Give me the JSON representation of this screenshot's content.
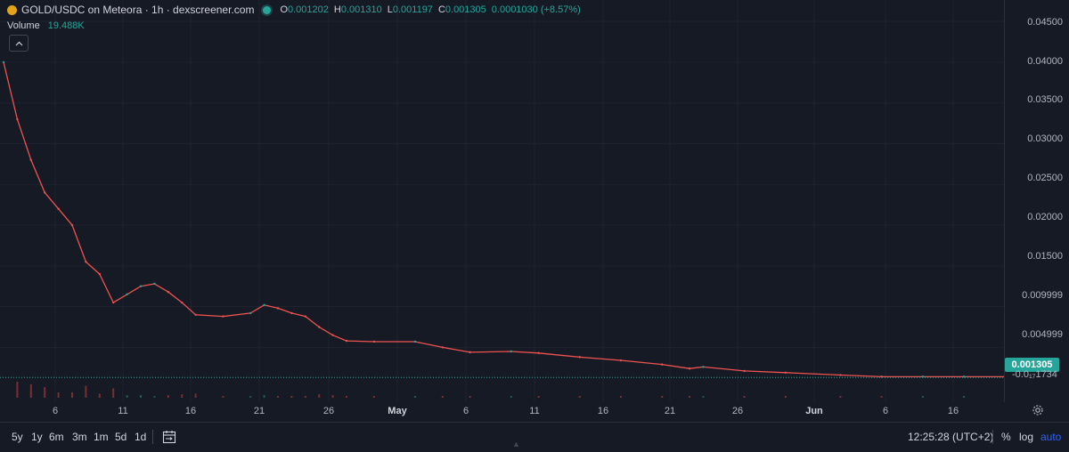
{
  "header": {
    "symbol": "GOLD/USDC on Meteora · 1h · dexscreener.com",
    "ohlc": [
      {
        "k": "O",
        "v": "0.001202"
      },
      {
        "k": "H",
        "v": "0.001310"
      },
      {
        "k": "L",
        "v": "0.001197"
      },
      {
        "k": "C",
        "v": "0.001305"
      }
    ],
    "change": "0.0001030 (+8.57%)",
    "volume_label": "Volume",
    "volume_value": "19.488K",
    "collapse_icon": "chevron-up-icon"
  },
  "price_axis": {
    "labels": [
      "0.04500",
      "0.04000",
      "0.03500",
      "0.03000",
      "0.02500",
      "0.02000",
      "0.01500",
      "0.009999",
      "0.004999"
    ],
    "last_price": "0.001305",
    "secondary_label": "-0.0₁₇1734"
  },
  "time_axis": {
    "labels": [
      "6",
      "11",
      "16",
      "21",
      "26",
      "May",
      "6",
      "11",
      "16",
      "21",
      "26",
      "Jun",
      "6",
      "16"
    ],
    "month_labels": [
      "May",
      "Jun"
    ],
    "settings_icon": "gear-icon"
  },
  "bottom_bar": {
    "ranges": [
      "5y",
      "1y",
      "6m",
      "3m",
      "1m",
      "5d",
      "1d"
    ],
    "date_range_icon": "calendar-range-icon",
    "clock": "12:25:28 (UTC+2)",
    "options": [
      "%",
      "log",
      "auto"
    ]
  },
  "colors": {
    "background": "#161a25",
    "up": "#26a69a",
    "down": "#ef5350",
    "grid": "#1f2330"
  },
  "chart_data": {
    "type": "line",
    "title": "GOLD/USDC on Meteora · 1h · dexscreener.com",
    "ylim": [
      -0.0002,
      0.0472
    ],
    "y_ticks": [
      0.045,
      0.04,
      0.035,
      0.03,
      0.025,
      0.02,
      0.015,
      0.009999,
      0.004999
    ],
    "x_ticks": [
      "6",
      "11",
      "16",
      "21",
      "26",
      "May",
      "6",
      "11",
      "16",
      "21",
      "26",
      "Jun",
      "6",
      "16"
    ],
    "series": [
      {
        "x": [
          "Apr 1",
          "Apr 2",
          "Apr 3",
          "Apr 4",
          "Apr 5",
          "Apr 6",
          "Apr 7",
          "Apr 8",
          "Apr 9",
          "Apr 10",
          "Apr 11",
          "Apr 12",
          "Apr 13",
          "Apr 14",
          "Apr 15",
          "Apr 17",
          "Apr 19",
          "Apr 20",
          "Apr 21",
          "Apr 22",
          "Apr 23",
          "Apr 24",
          "Apr 25",
          "Apr 26",
          "Apr 28",
          "May 1",
          "May 3",
          "May 5",
          "May 8",
          "May 10",
          "May 13",
          "May 16",
          "May 19",
          "May 21",
          "May 22",
          "May 25",
          "May 28",
          "Jun 1",
          "Jun 4",
          "Jun 7",
          "Jun 10",
          "Jun 13",
          "Jun 16",
          "Jun 18",
          "Jun 20"
        ],
        "values": [
          0.04,
          0.033,
          0.028,
          0.024,
          0.022,
          0.02,
          0.0155,
          0.014,
          0.0105,
          0.0115,
          0.0125,
          0.0128,
          0.0118,
          0.0105,
          0.009,
          0.0088,
          0.0092,
          0.0102,
          0.0098,
          0.0092,
          0.0088,
          0.0075,
          0.0065,
          0.0058,
          0.0057,
          0.0057,
          0.005,
          0.0044,
          0.0045,
          0.0043,
          0.0038,
          0.0034,
          0.0029,
          0.0024,
          0.0026,
          0.0021,
          0.0019,
          0.0016,
          0.0014,
          0.0014,
          0.0014,
          0.0014,
          0.0015,
          0.0013,
          0.001305
        ]
      }
    ],
    "volume": {
      "name": "Volume",
      "last": "19.488K"
    },
    "last_price": 0.001305,
    "grid": true
  }
}
